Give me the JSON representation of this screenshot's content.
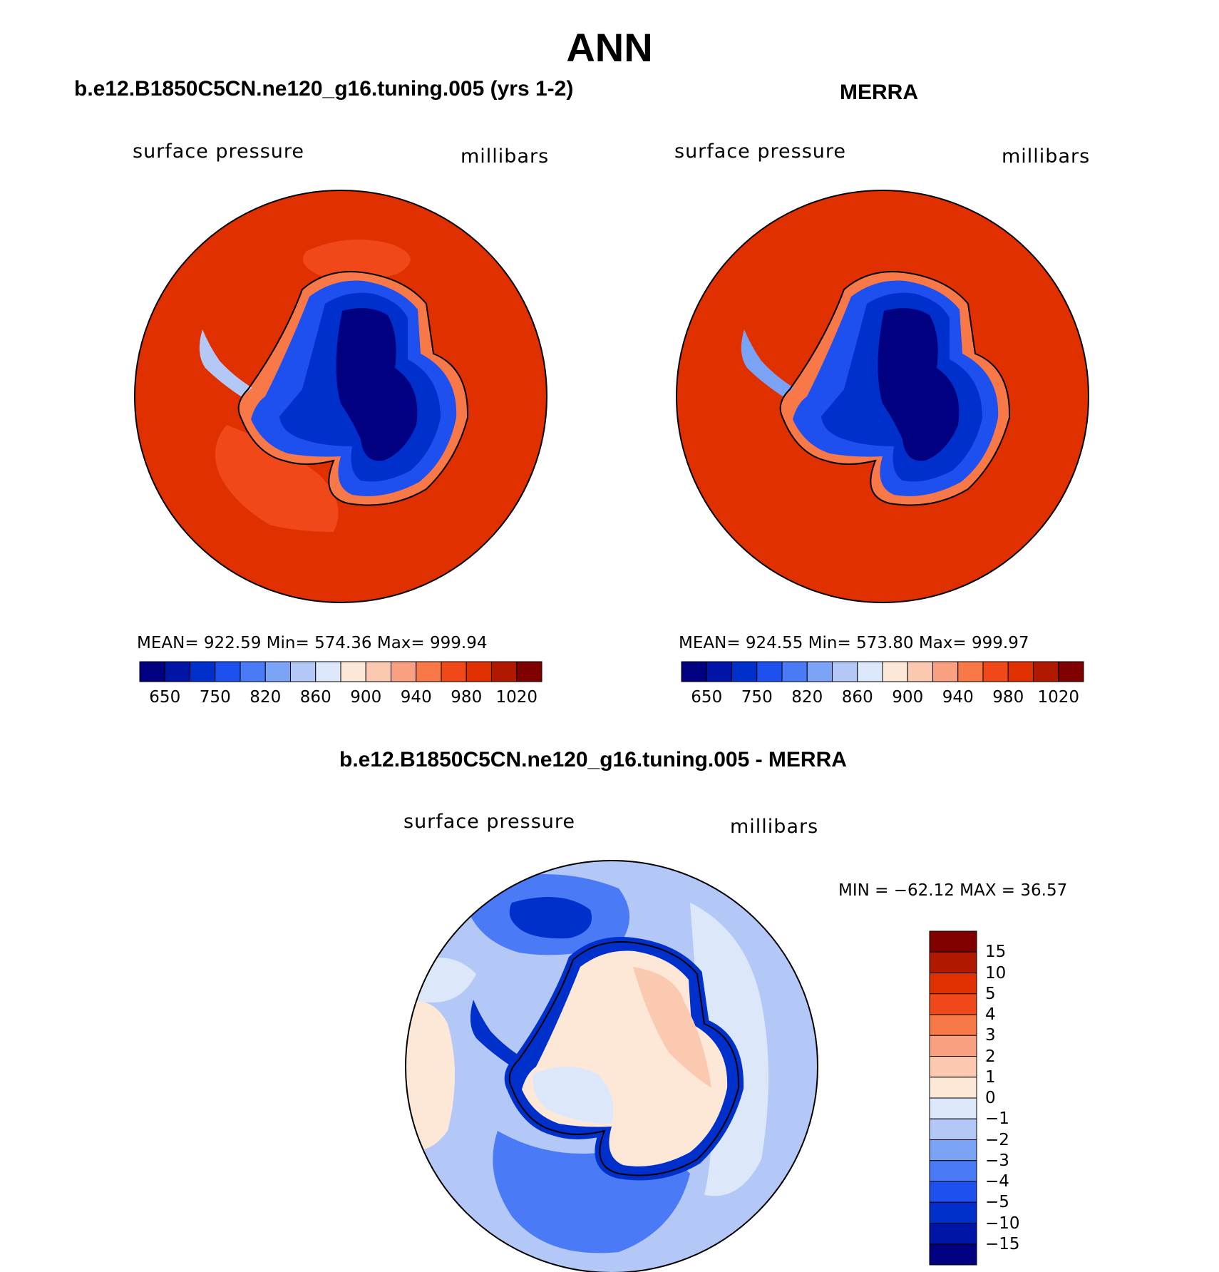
{
  "title": "ANN",
  "panels": [
    {
      "title": "b.e12.B1850C5CN.ne120_g16.tuning.005 (yrs 1-2)",
      "left_label": "surface pressure",
      "right_label": "millibars",
      "stats": "MEAN= 922.59   Min= 574.36   Max= 999.94"
    },
    {
      "title": "MERRA",
      "left_label": "surface pressure",
      "right_label": "millibars",
      "stats": "MEAN= 924.55   Min= 573.80   Max= 999.97"
    },
    {
      "title": "b.e12.B1850C5CN.ne120_g16.tuning.005 - MERRA",
      "left_label": "surface pressure",
      "right_label": "millibars",
      "stats": "MIN = −62.12 MAX =   36.57"
    }
  ],
  "colorbar_main": {
    "colors": [
      "#000080",
      "#0014a6",
      "#0030cc",
      "#1e50f0",
      "#4a7af5",
      "#7aa2f5",
      "#b4c8f8",
      "#dce8fa",
      "#fde8d8",
      "#fbc8b0",
      "#f8a080",
      "#f87848",
      "#f04818",
      "#e03000",
      "#b01800",
      "#800000"
    ],
    "labels": [
      "650",
      "750",
      "820",
      "860",
      "900",
      "940",
      "980",
      "1020"
    ]
  },
  "colorbar_diff": {
    "colors": [
      "#000080",
      "#0014a6",
      "#0030cc",
      "#1e50f0",
      "#4a7af5",
      "#7aa2f5",
      "#b4c8f8",
      "#dce8fa",
      "#fde8d8",
      "#fbc8b0",
      "#f8a080",
      "#f87848",
      "#f04818",
      "#e03000",
      "#b01800",
      "#800000"
    ],
    "labels": [
      "15",
      "10",
      "5",
      "4",
      "3",
      "2",
      "1",
      "0",
      "−1",
      "−2",
      "−3",
      "−4",
      "−5",
      "−10",
      "−15"
    ]
  }
}
